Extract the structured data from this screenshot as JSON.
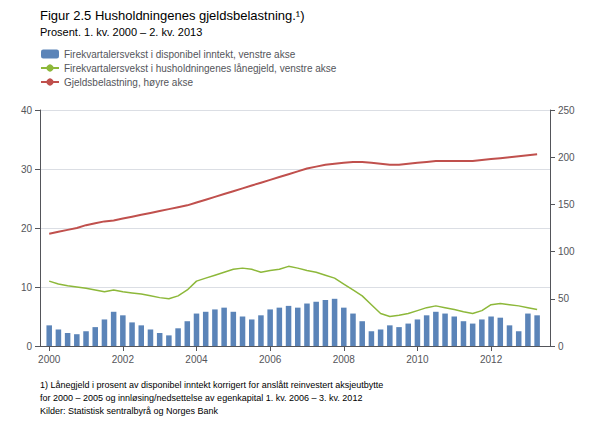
{
  "chart_data": {
    "type": "bar",
    "title": "Figur 2.5 Husholdningenes gjeldsbelastning.¹)",
    "subtitle": "Prosent. 1. kv. 2000 – 2. kv. 2013",
    "annotations": [
      "1) Lånegjeld i prosent av disponibel inntekt korrigert for anslått reinvestert aksjeutbytte",
      "for 2000 – 2005 og innløsing/nedsettelse av egenkapital 1. kv. 2006 – 3. kv. 2012",
      "Kilder: Statistisk sentralbyrå og Norges Bank"
    ],
    "x": [
      2000.0,
      2000.25,
      2000.5,
      2000.75,
      2001.0,
      2001.25,
      2001.5,
      2001.75,
      2002.0,
      2002.25,
      2002.5,
      2002.75,
      2003.0,
      2003.25,
      2003.5,
      2003.75,
      2004.0,
      2004.25,
      2004.5,
      2004.75,
      2005.0,
      2005.25,
      2005.5,
      2005.75,
      2006.0,
      2006.25,
      2006.5,
      2006.75,
      2007.0,
      2007.25,
      2007.5,
      2007.75,
      2008.0,
      2008.25,
      2008.5,
      2008.75,
      2009.0,
      2009.25,
      2009.5,
      2009.75,
      2010.0,
      2010.25,
      2010.5,
      2010.75,
      2011.0,
      2011.25,
      2011.5,
      2011.75,
      2012.0,
      2012.25,
      2012.5,
      2012.75,
      2013.0,
      2013.25
    ],
    "series": [
      {
        "name": "Firekvartalersvekst i disponibel inntekt, venstre akse",
        "type": "bar",
        "color": "#5B84B8",
        "values": [
          3.5,
          2.8,
          2.2,
          2.0,
          2.5,
          3.2,
          4.5,
          5.8,
          5.2,
          4.0,
          3.5,
          2.8,
          2.2,
          1.8,
          3.0,
          4.2,
          5.5,
          5.8,
          6.2,
          6.5,
          5.8,
          5.0,
          4.5,
          5.2,
          6.2,
          6.5,
          6.8,
          6.5,
          7.2,
          7.5,
          7.8,
          8.0,
          6.5,
          5.5,
          4.2,
          2.5,
          2.8,
          3.5,
          3.2,
          3.8,
          4.5,
          5.2,
          5.8,
          5.5,
          5.0,
          4.2,
          3.8,
          4.5,
          5.0,
          4.8,
          3.5,
          2.5,
          5.5,
          5.2
        ]
      },
      {
        "name": "Firekvartalersvekst i husholdningenes lånegjeld, venstre akse",
        "type": "line",
        "color": "#8DB83A",
        "values": [
          11.0,
          10.5,
          10.2,
          10.0,
          9.8,
          9.5,
          9.2,
          9.5,
          9.2,
          9.0,
          8.8,
          8.5,
          8.2,
          8.0,
          8.5,
          9.5,
          11.0,
          11.5,
          12.0,
          12.5,
          13.0,
          13.2,
          13.0,
          12.5,
          12.8,
          13.0,
          13.5,
          13.2,
          12.8,
          12.5,
          12.0,
          11.5,
          10.5,
          9.5,
          8.5,
          7.0,
          5.5,
          5.0,
          5.2,
          5.5,
          6.0,
          6.5,
          6.8,
          6.5,
          6.2,
          5.8,
          5.5,
          6.0,
          7.0,
          7.2,
          7.0,
          6.8,
          6.5,
          6.2
        ]
      },
      {
        "name": "Gjeldsbelastning, høyre akse",
        "type": "line",
        "color": "#C0504D",
        "axis": "y2",
        "values": [
          119,
          121,
          123,
          125,
          128,
          130,
          132,
          133,
          135,
          137,
          139,
          141,
          143,
          145,
          147,
          149,
          152,
          155,
          158,
          161,
          164,
          167,
          170,
          173,
          176,
          179,
          182,
          185,
          188,
          190,
          192,
          193,
          194,
          195,
          195,
          194,
          193,
          192,
          192,
          193,
          194,
          195,
          196,
          196,
          196,
          196,
          196,
          197,
          198,
          199,
          200,
          201,
          202,
          203
        ]
      }
    ],
    "xlim": [
      1999.75,
      2013.6
    ],
    "xticks": [
      2000,
      2002,
      2004,
      2006,
      2008,
      2010,
      2012
    ],
    "ylim": [
      0,
      40
    ],
    "yticks": [
      0,
      10,
      20,
      30,
      40
    ],
    "y2lim": [
      0,
      250
    ],
    "y2ticks": [
      0,
      50,
      100,
      150,
      200,
      250
    ],
    "grid": true,
    "legend": "upper left"
  }
}
